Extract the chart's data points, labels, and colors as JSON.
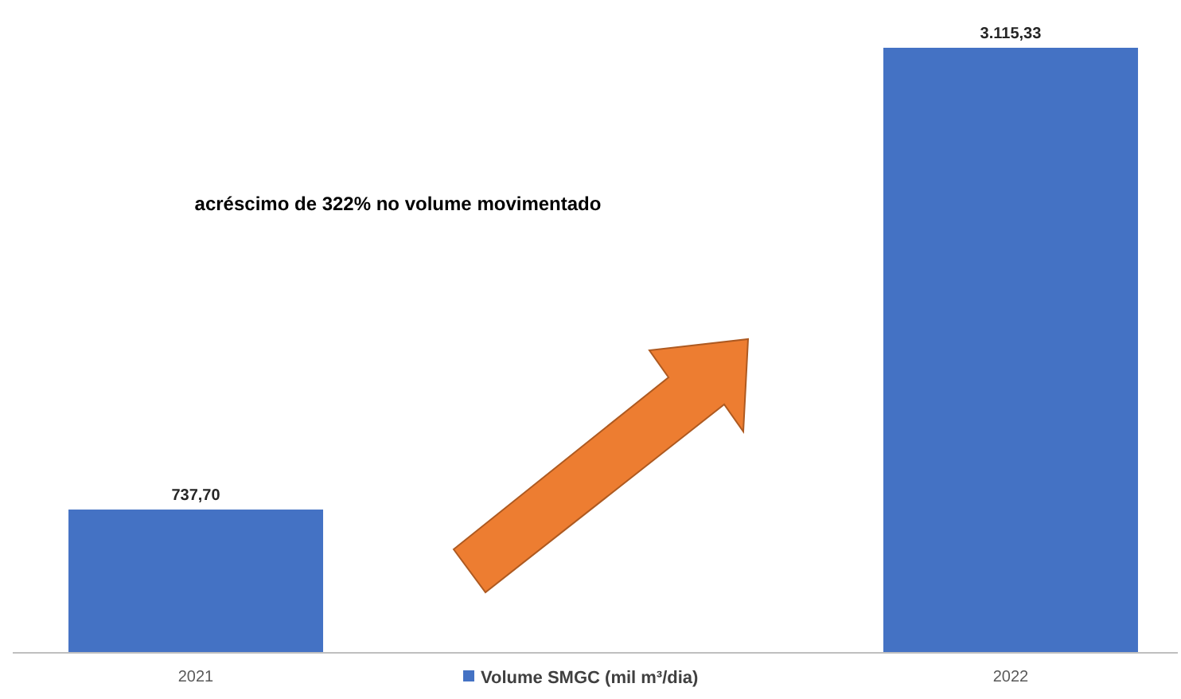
{
  "chart_data": {
    "type": "bar",
    "categories": [
      "2021",
      "2022"
    ],
    "series": [
      {
        "name": "Volume SMGC (mil m³/dia)",
        "color": "#4472c4",
        "values": [
          737.7,
          3115.33
        ],
        "value_labels": [
          "737,70",
          "3.115,33"
        ]
      }
    ],
    "annotations": [
      "acréscimo de 322% no volume movimentado"
    ],
    "legend": "bottom"
  }
}
